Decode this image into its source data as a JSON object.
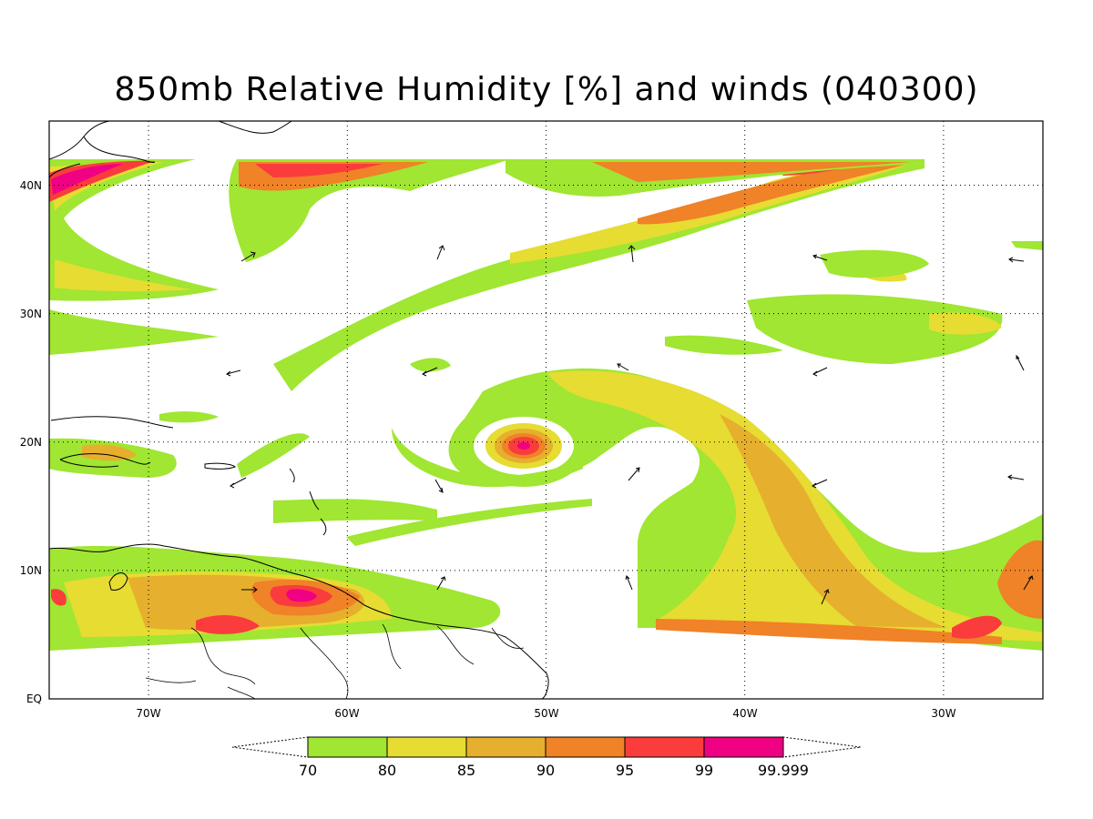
{
  "title": "850mb Relative Humidity [%] and winds (040300)",
  "map": {
    "lon_range": [
      -75,
      -25
    ],
    "lat_range": [
      0,
      45
    ],
    "lon_ticks": [
      {
        "value": -70,
        "label": "70W"
      },
      {
        "value": -60,
        "label": "60W"
      },
      {
        "value": -50,
        "label": "50W"
      },
      {
        "value": -40,
        "label": "40W"
      },
      {
        "value": -30,
        "label": "30W"
      }
    ],
    "lat_ticks": [
      {
        "value": 0,
        "label": "EQ"
      },
      {
        "value": 10,
        "label": "10N"
      },
      {
        "value": 20,
        "label": "20N"
      },
      {
        "value": 30,
        "label": "30N"
      },
      {
        "value": 40,
        "label": "40N"
      }
    ],
    "grid": "dotted",
    "storm_center": {
      "lon": -51,
      "lat": 20
    }
  },
  "colorbar": {
    "levels": [
      "70",
      "80",
      "85",
      "90",
      "95",
      "99",
      "99.999"
    ],
    "colors": [
      "#a0e632",
      "#e6dc32",
      "#e6af2d",
      "#f08228",
      "#fa3c3c",
      "#f00082"
    ]
  },
  "colors": {
    "rh70": "#a0e632",
    "rh80": "#e6dc32",
    "rh85": "#e6af2d",
    "rh90": "#f08228",
    "rh95": "#fa3c3c",
    "rh99": "#f00082"
  }
}
